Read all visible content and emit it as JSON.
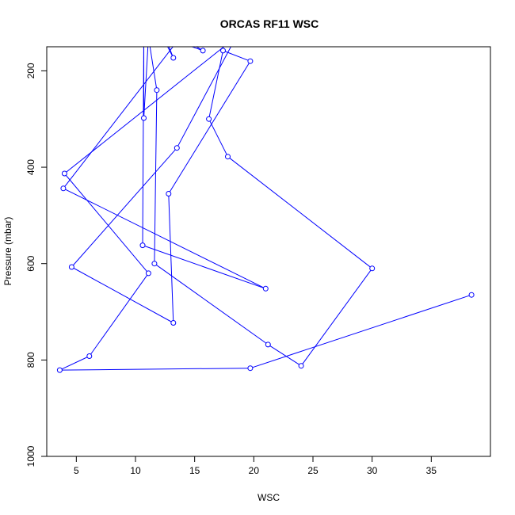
{
  "chart_data": {
    "type": "line",
    "title": "ORCAS RF11 WSC",
    "xlabel": "WSC",
    "ylabel": "Pressure (mbar)",
    "xlim": [
      2.5,
      40
    ],
    "ylim": [
      1000,
      150
    ],
    "y_reversed": true,
    "xticks": [
      5,
      10,
      15,
      20,
      25,
      30,
      35
    ],
    "yticks": [
      200,
      400,
      600,
      800,
      1000
    ],
    "line_color": "#0000ff",
    "marker": "open-circle",
    "grid": false,
    "legend": "none",
    "series": [
      {
        "points": [
          [
            12.3,
            130
          ],
          [
            13.2,
            173
          ],
          [
            12.5,
            130
          ],
          [
            15.7,
            158
          ],
          [
            13.8,
            130
          ],
          [
            3.9,
            444
          ],
          [
            21.0,
            652
          ],
          [
            10.6,
            562
          ],
          [
            10.7,
            130
          ],
          [
            10.7,
            298
          ],
          [
            11.1,
            130
          ],
          [
            11.8,
            240
          ],
          [
            11.6,
            600
          ],
          [
            21.2,
            768
          ],
          [
            24.0,
            812
          ],
          [
            30.0,
            610
          ],
          [
            17.8,
            378
          ],
          [
            16.2,
            300
          ],
          [
            17.4,
            158
          ],
          [
            19.7,
            180
          ],
          [
            12.8,
            455
          ],
          [
            13.2,
            723
          ],
          [
            4.6,
            607
          ],
          [
            13.5,
            360
          ],
          [
            18.5,
            130
          ],
          [
            4.0,
            413
          ],
          [
            11.1,
            620
          ],
          [
            6.1,
            792
          ],
          [
            3.6,
            821
          ],
          [
            19.7,
            817
          ],
          [
            38.4,
            665
          ]
        ]
      }
    ]
  }
}
